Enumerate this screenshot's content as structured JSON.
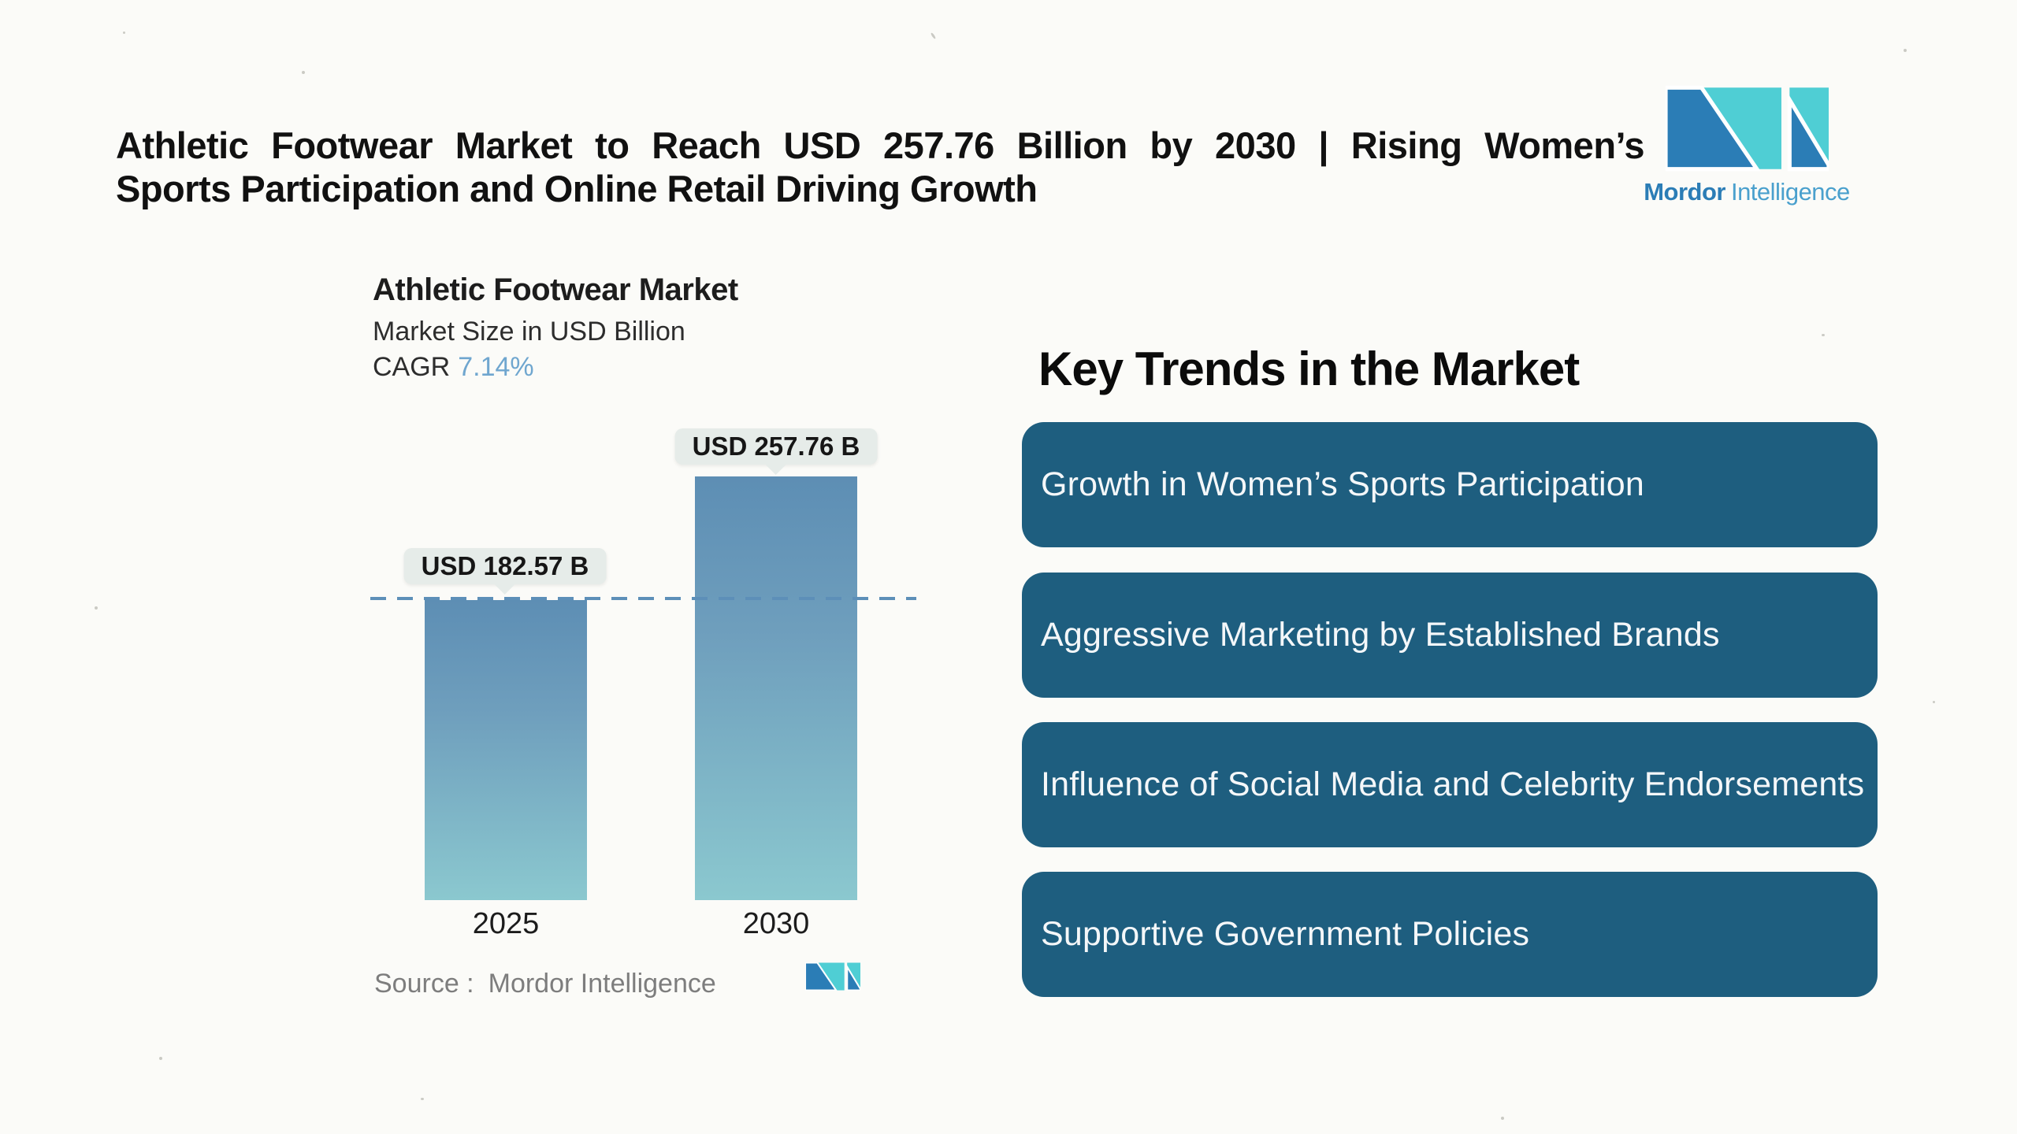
{
  "page": {
    "background": "#fbfbf8"
  },
  "header": {
    "title_line1": "Athletic Footwear Market to Reach USD 257.76 Billion by 2030 | Rising Women’s",
    "title_line2": "Sports Participation and Online Retail Driving Growth"
  },
  "logo": {
    "name": "Mordor Intelligence",
    "word1": "Mordor",
    "word2": "Intelligence",
    "blue": "#2b7db6",
    "teal": "#4fced4"
  },
  "chart": {
    "title": "Athletic Footwear Market",
    "subtitle": "Market Size in USD Billion",
    "cagr_label": "CAGR",
    "cagr_value": "7.14%",
    "cagr_value_color": "#6fa6cf",
    "source_label": "Source :",
    "source_value": "Mordor Intelligence"
  },
  "chart_data": {
    "type": "bar",
    "title": "Athletic Footwear Market",
    "subtitle": "Market Size in USD Billion",
    "cagr": "7.14%",
    "categories": [
      "2025",
      "2030"
    ],
    "values": [
      182.57,
      257.76
    ],
    "value_labels": [
      "USD 182.57 B",
      "USD 257.76 B"
    ],
    "unit": "USD Billion",
    "ylabel": "Market Size in USD Billion",
    "ylim": [
      0,
      270
    ],
    "grid": false,
    "bar_gradient_top": "#5d8eb4",
    "bar_gradient_bottom": "#8bc8cf",
    "reference_line": {
      "value": 182.57,
      "style": "dashed",
      "color": "#5d8fb8"
    },
    "source": "Mordor Intelligence"
  },
  "trends": {
    "title": "Key Trends in the Market",
    "box_color": "#1e5e7f",
    "text_color": "#f4f7f9",
    "items": [
      {
        "label": "Growth in Women’s Sports Participation"
      },
      {
        "label": "Aggressive Marketing by Established Brands"
      },
      {
        "label": "Influence of Social Media and Celebrity Endorsements"
      },
      {
        "label": "Supportive Government Policies"
      }
    ]
  }
}
